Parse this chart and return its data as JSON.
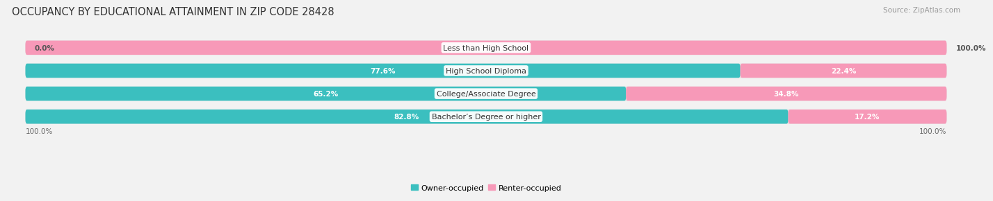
{
  "title": "OCCUPANCY BY EDUCATIONAL ATTAINMENT IN ZIP CODE 28428",
  "source": "Source: ZipAtlas.com",
  "categories": [
    "Less than High School",
    "High School Diploma",
    "College/Associate Degree",
    "Bachelor’s Degree or higher"
  ],
  "owner_pct": [
    0.0,
    77.6,
    65.2,
    82.8
  ],
  "renter_pct": [
    100.0,
    22.4,
    34.8,
    17.2
  ],
  "owner_color": "#3bbfbf",
  "renter_color": "#f799b8",
  "bg_color": "#f2f2f2",
  "bar_bg_color": "#e0e0e0",
  "title_fontsize": 10.5,
  "label_fontsize": 8,
  "value_fontsize": 7.5,
  "legend_fontsize": 8,
  "source_fontsize": 7.5,
  "axis_label_fontsize": 7.5
}
